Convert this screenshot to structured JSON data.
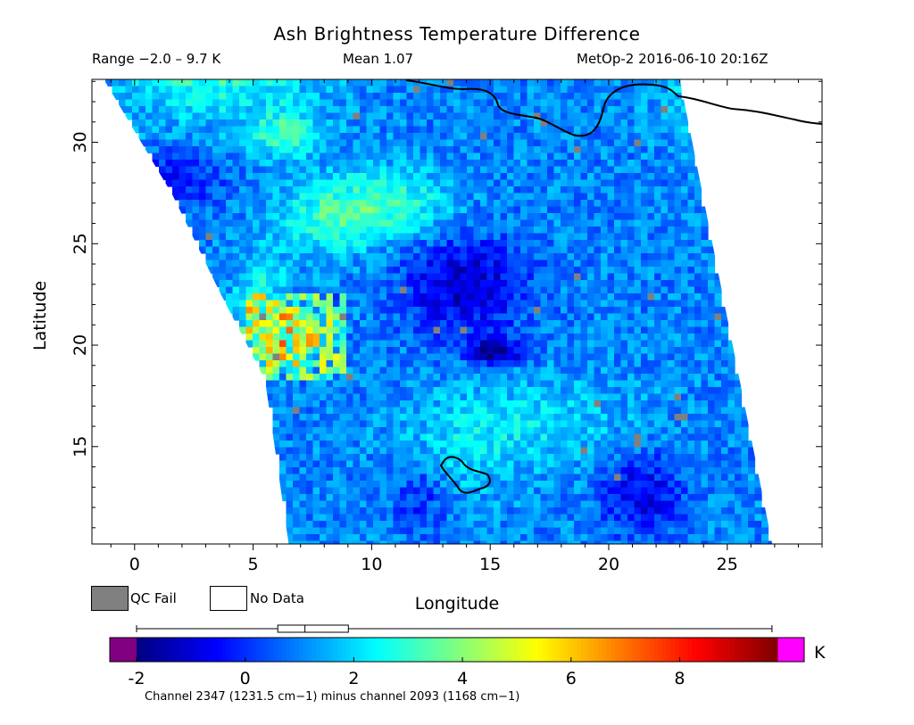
{
  "header": {
    "title": "Ash Brightness Temperature Difference",
    "range": "Range −2.0 – 9.7 K",
    "mean": "Mean 1.07",
    "satellite_time": "MetOp-2 2016-06-10 20:16Z"
  },
  "map": {
    "xlabel": "Longitude",
    "ylabel": "Latitude",
    "x_ticks": [
      0,
      5,
      10,
      15,
      20,
      25
    ],
    "y_ticks": [
      15,
      20,
      25,
      30
    ],
    "xlim": [
      -1.8,
      29
    ],
    "ylim": [
      10.2,
      33.1
    ],
    "swath": {
      "left_edge": [
        [
          -1.3,
          33.1
        ],
        [
          1.6,
          27.4
        ],
        [
          3.6,
          22.6
        ],
        [
          5.5,
          18.3
        ],
        [
          6.5,
          10.2
        ]
      ],
      "right_edge": [
        [
          23.0,
          33.1
        ],
        [
          26.9,
          10.2
        ]
      ]
    },
    "features": {
      "ash_hotspot": {
        "center": [
          6.6,
          20.8
        ],
        "max_value": 9.7
      },
      "dark_low": {
        "center": [
          15.2,
          19.9
        ],
        "value": -1.5
      },
      "border_outline_color": "#000000"
    }
  },
  "legend": {
    "qc_fail": {
      "label": "QC Fail",
      "color": "#808080"
    },
    "no_data": {
      "label": "No Data",
      "color": "#ffffff"
    }
  },
  "colorbar": {
    "ticks": [
      -2,
      0,
      2,
      4,
      6,
      8
    ],
    "range": [
      -2.0,
      9.8
    ],
    "unit": "K",
    "under_color": "#800080",
    "over_color": "#ff00ff",
    "boxplot": {
      "min": -2.0,
      "q1": 0.6,
      "median": 1.1,
      "q3": 1.9,
      "max": 9.7
    }
  },
  "footnote": "Channel 2347 (1231.5 cm−1) minus channel 2093 (1168 cm−1)"
}
